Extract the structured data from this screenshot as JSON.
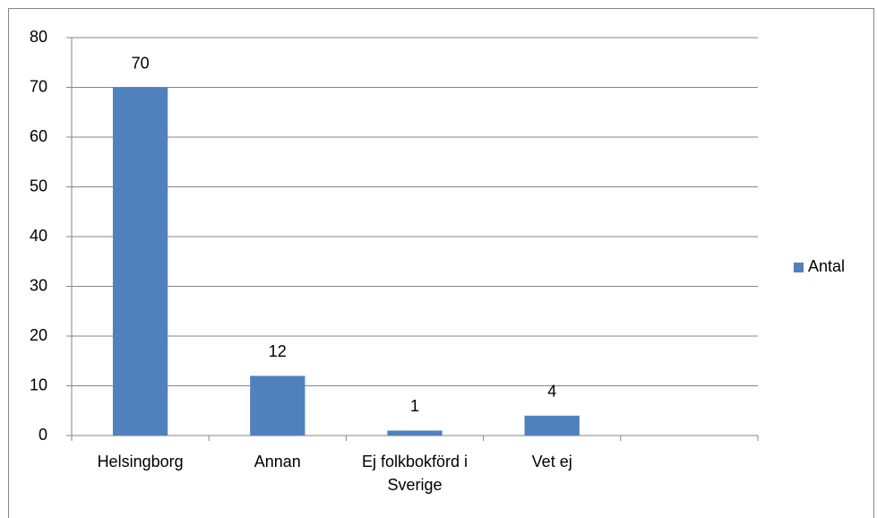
{
  "chart_data": {
    "type": "bar",
    "categories": [
      "Helsingborg",
      "Annan",
      "Ej folkbokförd i Sverige",
      "Vet ej",
      null
    ],
    "series": [
      {
        "name": "Antal",
        "color": "#4f81bd",
        "values": [
          70,
          12,
          1,
          4,
          null
        ]
      }
    ],
    "ylim": [
      0,
      80
    ],
    "yticks": [
      0,
      10,
      20,
      30,
      40,
      50,
      60,
      70,
      80
    ],
    "grid": true,
    "legend": "right",
    "data_labels": true
  }
}
